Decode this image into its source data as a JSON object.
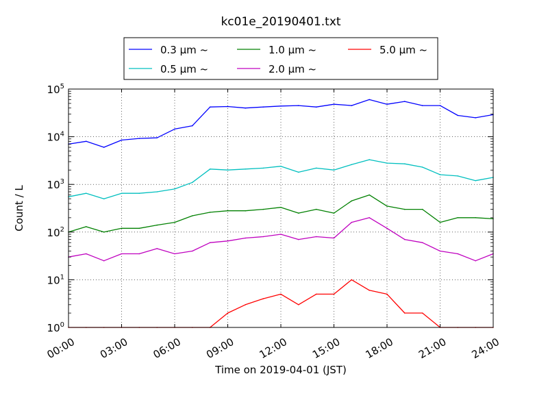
{
  "chart_data": {
    "type": "line",
    "title": "kc01e_20190401.txt",
    "xlabel": "Time on 2019-04-01 (JST)",
    "ylabel": "Count / L",
    "xlim": [
      "2019-04-01 00:00",
      "2019-04-02 00:00"
    ],
    "ylim": [
      1,
      100000
    ],
    "yscale": "log",
    "grid": true,
    "legend_position": "top-center",
    "x_ticks": [
      "00:00",
      "03:00",
      "06:00",
      "09:00",
      "12:00",
      "15:00",
      "18:00",
      "21:00",
      "24:00"
    ],
    "y_ticks": [
      {
        "base": "10",
        "exp": "0"
      },
      {
        "base": "10",
        "exp": "1"
      },
      {
        "base": "10",
        "exp": "2"
      },
      {
        "base": "10",
        "exp": "3"
      },
      {
        "base": "10",
        "exp": "4"
      },
      {
        "base": "10",
        "exp": "5"
      }
    ],
    "x_times": [
      "00:00",
      "01:00",
      "02:00",
      "03:00",
      "04:00",
      "05:00",
      "06:00",
      "07:00",
      "08:00",
      "09:00",
      "10:00",
      "11:00",
      "12:00",
      "13:00",
      "14:00",
      "15:00",
      "16:00",
      "17:00",
      "18:00",
      "19:00",
      "20:00",
      "21:00",
      "22:00",
      "23:00",
      "24:00"
    ],
    "series": [
      {
        "name": "0.3 μm ~",
        "color": "#0000ff",
        "values": [
          7000,
          8000,
          6000,
          8500,
          9200,
          9500,
          14500,
          17000,
          42000,
          43000,
          40000,
          42000,
          44000,
          45000,
          42000,
          48000,
          45000,
          60000,
          48000,
          55000,
          45000,
          45000,
          28000,
          25000,
          29000
        ]
      },
      {
        "name": "0.5 μm ~",
        "color": "#00bfbf",
        "values": [
          550,
          650,
          500,
          650,
          650,
          700,
          800,
          1100,
          2100,
          2000,
          2100,
          2200,
          2400,
          1800,
          2200,
          2000,
          2600,
          3300,
          2800,
          2700,
          2300,
          1600,
          1500,
          1200,
          1400
        ]
      },
      {
        "name": "1.0 μm ~",
        "color": "#008000",
        "values": [
          100,
          130,
          100,
          120,
          120,
          140,
          160,
          220,
          260,
          280,
          280,
          300,
          330,
          250,
          300,
          250,
          450,
          600,
          350,
          300,
          300,
          160,
          200,
          200,
          190
        ]
      },
      {
        "name": "2.0 μm ~",
        "color": "#bf00bf",
        "values": [
          30,
          35,
          25,
          35,
          35,
          45,
          35,
          40,
          60,
          65,
          75,
          80,
          90,
          70,
          80,
          75,
          160,
          200,
          120,
          70,
          60,
          40,
          35,
          25,
          35
        ]
      },
      {
        "name": "5.0 μm ~",
        "color": "#ff0000",
        "values": [
          1,
          1,
          1,
          1,
          1,
          1,
          1,
          1,
          1,
          2,
          3,
          4,
          5,
          3,
          5,
          5,
          10,
          6,
          5,
          2,
          2,
          1,
          1,
          1,
          1
        ]
      }
    ]
  }
}
